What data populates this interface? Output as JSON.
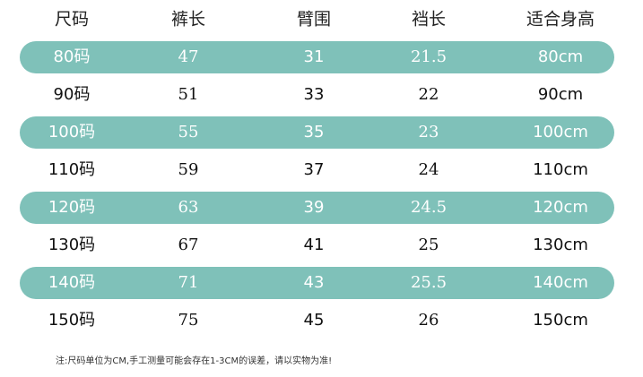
{
  "table": {
    "header": [
      "尺码",
      "裤长",
      "臂围",
      "裆长",
      "适合身高"
    ],
    "rows": [
      [
        "80码",
        "47",
        "31",
        "21.5",
        "80cm"
      ],
      [
        "90码",
        "51",
        "33",
        "22",
        "90cm"
      ],
      [
        "100码",
        "55",
        "35",
        "23",
        "100cm"
      ],
      [
        "110码",
        "59",
        "37",
        "24",
        "110cm"
      ],
      [
        "120码",
        "63",
        "39",
        "24.5",
        "120cm"
      ],
      [
        "130码",
        "67",
        "41",
        "25",
        "130cm"
      ],
      [
        "140码",
        "71",
        "43",
        "25.5",
        "140cm"
      ],
      [
        "150码",
        "75",
        "45",
        "26",
        "150cm"
      ]
    ]
  },
  "note": "注:尺码单位为CM,手工测量可能会存在1-3CM的误差，请以实物为准!"
}
